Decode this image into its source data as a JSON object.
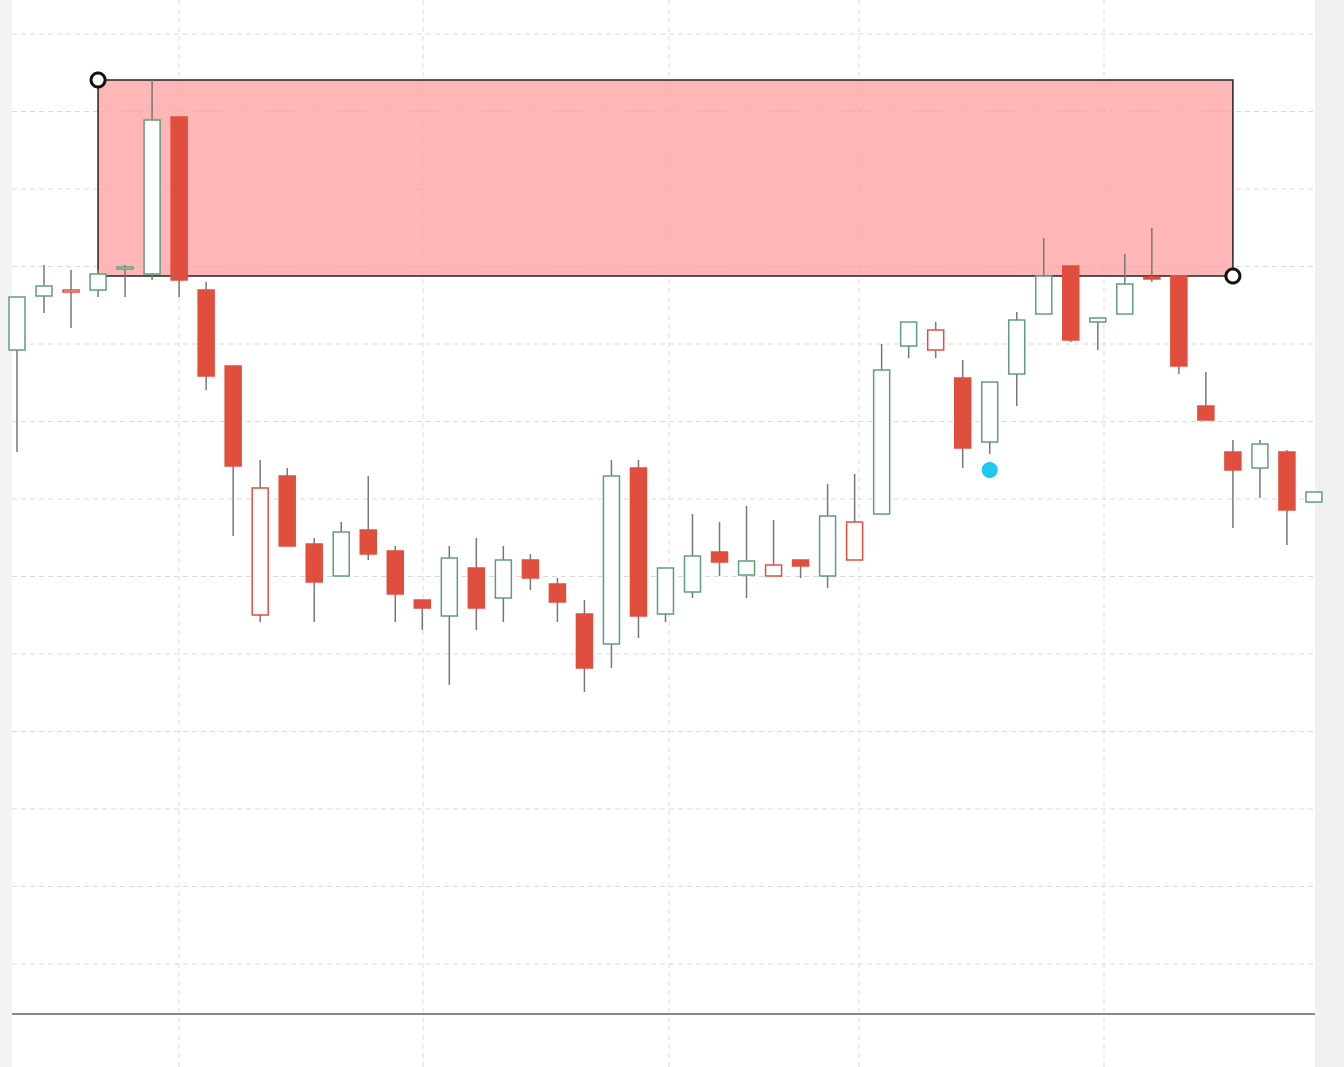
{
  "chart_data": {
    "type": "candlestick",
    "open": [
      664,
      718,
      723,
      724,
      746,
      740,
      897,
      724,
      648,
      399,
      538,
      470,
      438,
      484,
      463,
      414,
      398,
      446,
      416,
      454,
      430,
      400,
      370,
      546,
      400,
      422,
      462,
      439,
      438,
      454,
      438,
      454,
      500,
      668,
      664,
      636,
      572,
      640,
      700,
      748,
      692,
      700,
      737,
      738,
      608,
      562,
      546,
      562,
      512
    ],
    "high": [
      717,
      749,
      744,
      744,
      749,
      934,
      897,
      732,
      648,
      554,
      546,
      476,
      492,
      538,
      468,
      414,
      468,
      476,
      468,
      460,
      436,
      414,
      554,
      554,
      446,
      500,
      492,
      508,
      494,
      454,
      530,
      540,
      670,
      692,
      692,
      654,
      632,
      702,
      776,
      748,
      696,
      760,
      786,
      738,
      642,
      574,
      574,
      564,
      522
    ],
    "low": [
      562,
      701,
      686,
      717,
      717,
      734,
      717,
      624,
      478,
      392,
      468,
      392,
      438,
      454,
      392,
      384,
      329,
      384,
      392,
      424,
      392,
      322,
      346,
      376,
      392,
      416,
      438,
      416,
      438,
      436,
      426,
      454,
      500,
      656,
      656,
      546,
      560,
      608,
      700,
      672,
      664,
      700,
      732,
      640,
      594,
      486,
      516,
      469,
      512
    ],
    "close": [
      717,
      728,
      724,
      740,
      747,
      894,
      734,
      638,
      548,
      526,
      468,
      432,
      482,
      460,
      420,
      406,
      456,
      406,
      454,
      436,
      412,
      346,
      538,
      398,
      446,
      458,
      452,
      453,
      449,
      448,
      498,
      492,
      644,
      692,
      684,
      566,
      632,
      694,
      738,
      674,
      696,
      730,
      736,
      648,
      594,
      544,
      570,
      504,
      522
    ],
    "up_color": "#5f9e7c",
    "down_color": "#e04e3e",
    "wick_color": "#777777",
    "ylim": [
      0,
      1014
    ],
    "yticks": [
      50,
      127.5,
      205,
      282.5,
      360,
      437.5,
      515,
      592.5,
      670,
      747.5,
      825,
      902.5,
      980
    ],
    "grid": true,
    "zone": {
      "high": 934,
      "low": 738,
      "from": 3,
      "to": 45,
      "color": "#ff9e9e"
    },
    "marker": {
      "index": 36,
      "value": 544,
      "color": "#1ec8f0"
    }
  }
}
